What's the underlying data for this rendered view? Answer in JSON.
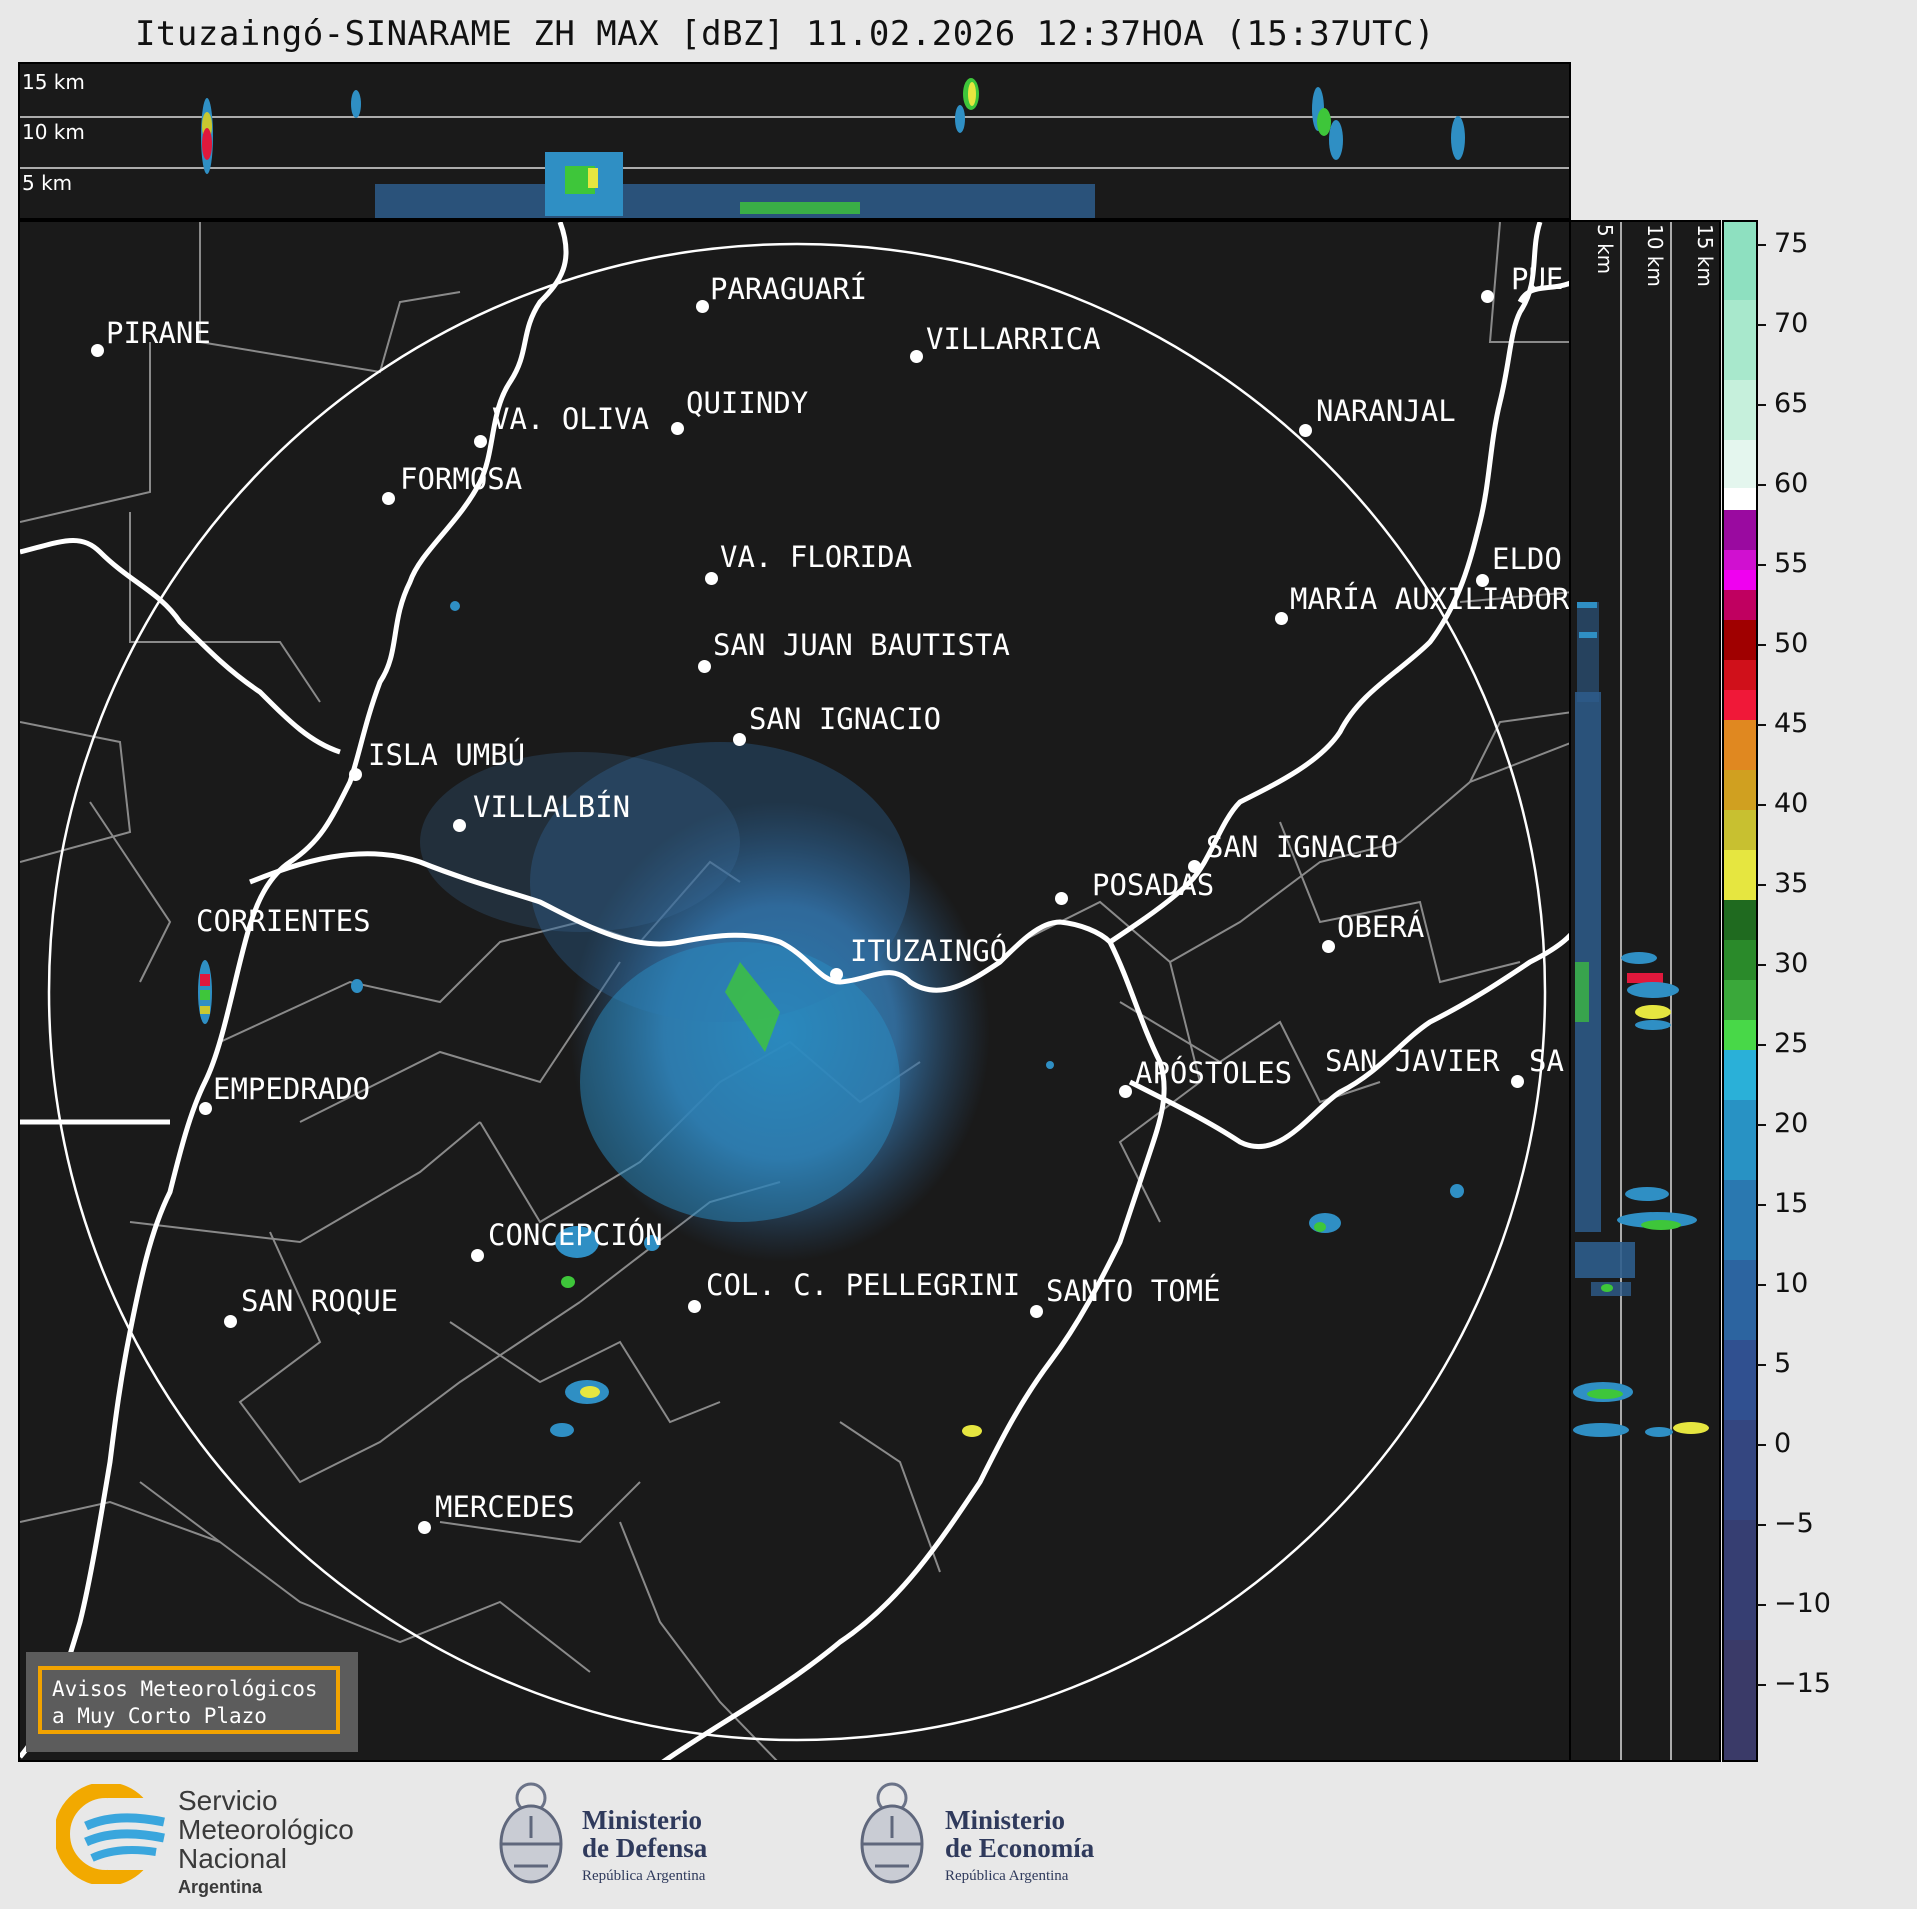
{
  "title": "Ituzaingó-SINARAME ZH MAX [dBZ] 11.02.2026 12:37HOA (15:37UTC)",
  "profile_labels": {
    "h15": "15 km",
    "h10": "10 km",
    "h5": "5 km"
  },
  "cities": [
    {
      "name": "PIRANE"
    },
    {
      "name": "PARAGUARÍ"
    },
    {
      "name": "VILLARRICA"
    },
    {
      "name": "QUIINDY"
    },
    {
      "name": "VA. OLIVA"
    },
    {
      "name": "FORMOSA"
    },
    {
      "name": "NARANJAL"
    },
    {
      "name": "PUE"
    },
    {
      "name": "VA. FLORIDA"
    },
    {
      "name": "ELDO"
    },
    {
      "name": "MARÍA AUXILIADOR"
    },
    {
      "name": "SAN JUAN BAUTISTA"
    },
    {
      "name": "SAN IGNACIO"
    },
    {
      "name": "ISLA UMBÚ"
    },
    {
      "name": "VILLALBÍN"
    },
    {
      "name": "SAN IGNACIO"
    },
    {
      "name": "POSADAS"
    },
    {
      "name": "CORRIENTES"
    },
    {
      "name": "ITUZAINGÓ"
    },
    {
      "name": "OBERÁ"
    },
    {
      "name": "EMPEDRADO"
    },
    {
      "name": "APÓSTOLES"
    },
    {
      "name": "SAN JAVIER"
    },
    {
      "name": "SA"
    },
    {
      "name": "CONCEPCIÓN"
    },
    {
      "name": "COL. C. PELLEGRINI"
    },
    {
      "name": "SANTO TOMÉ"
    },
    {
      "name": "SAN ROQUE"
    },
    {
      "name": "MERCEDES"
    }
  ],
  "colorbar": {
    "ticks": [
      "75",
      "70",
      "65",
      "60",
      "55",
      "50",
      "45",
      "40",
      "35",
      "30",
      "25",
      "20",
      "15",
      "10",
      "5",
      "0",
      "−5",
      "−10",
      "−15"
    ],
    "range": [
      -20,
      77
    ]
  },
  "warning": {
    "line1": "Avisos Meteorológicos",
    "line2": "a Muy Corto Plazo"
  },
  "logos": {
    "smn": {
      "line1": "Servicio",
      "line2": "Meteorológico",
      "line3": "Nacional",
      "line4": "Argentina"
    },
    "defensa": {
      "line1": "Ministerio",
      "line2": "de Defensa",
      "line3": "República Argentina"
    },
    "economia": {
      "line1": "Ministerio",
      "line2": "de Economía",
      "line3": "República Argentina"
    }
  }
}
